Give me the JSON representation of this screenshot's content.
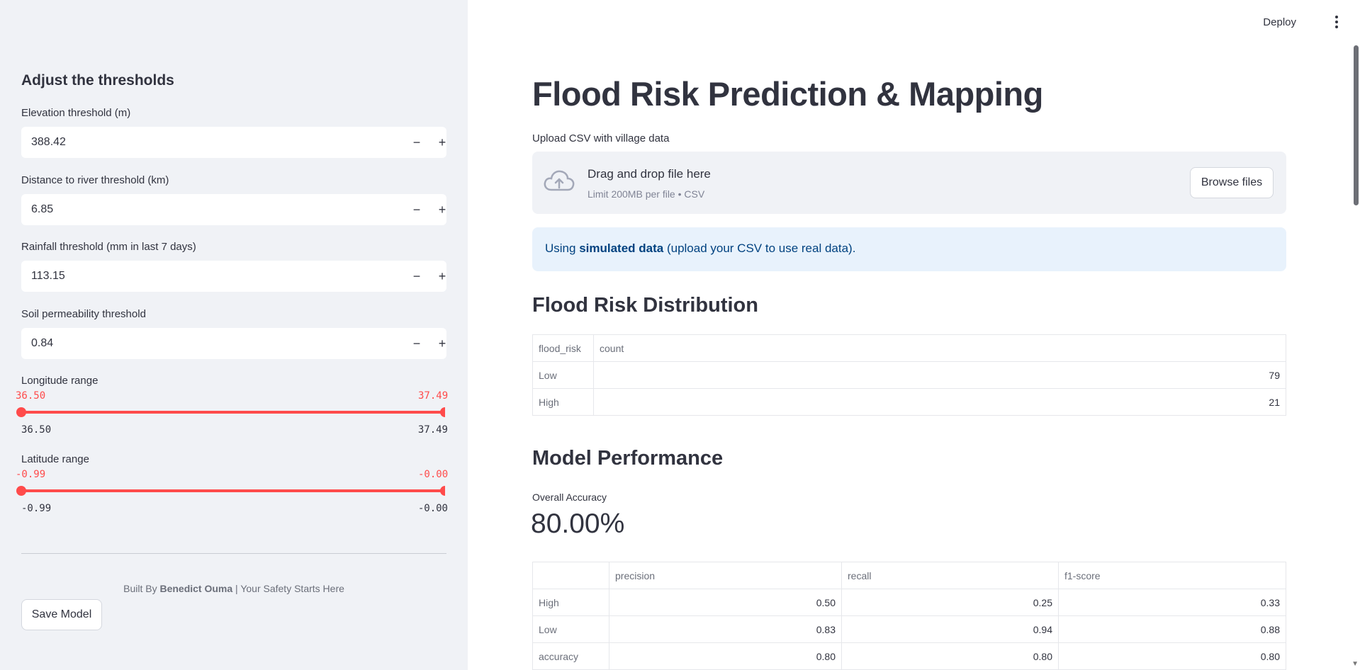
{
  "header": {
    "deploy_label": "Deploy",
    "menu_icon": "kebab-menu-icon"
  },
  "sidebar": {
    "title": "Adjust the thresholds",
    "inputs": [
      {
        "label": "Elevation threshold (m)",
        "value": "388.42"
      },
      {
        "label": "Distance to river threshold (km)",
        "value": "6.85"
      },
      {
        "label": "Rainfall threshold (mm in last 7 days)",
        "value": "113.15"
      },
      {
        "label": "Soil permeability threshold",
        "value": "0.84"
      }
    ],
    "step_minus": "−",
    "step_plus": "+",
    "sliders": [
      {
        "label": "Longitude range",
        "min_label": "36.50",
        "max_label_clipped": "37.49",
        "min": "36.50",
        "max": "37.49"
      },
      {
        "label": "Latitude range",
        "min_label": "-0.99",
        "max_label_clipped": "-0.00",
        "min": "-0.99",
        "max": "-0.00"
      }
    ],
    "footer": {
      "prefix": "Built By ",
      "author": "Benedict Ouma",
      "suffix": " | Your Safety Starts Here"
    },
    "save_button": "Save Model"
  },
  "main": {
    "title": "Flood Risk Prediction & Mapping",
    "upload": {
      "label": "Upload CSV with village data",
      "drop_title": "Drag and drop file here",
      "drop_sub": "Limit 200MB per file • CSV",
      "browse_button": "Browse files"
    },
    "info": {
      "prefix": "Using ",
      "bold": "simulated data",
      "suffix": " (upload your CSV to use real data)."
    },
    "distribution": {
      "heading": "Flood Risk Distribution",
      "columns": [
        "flood_risk",
        "count"
      ],
      "rows": [
        [
          "Low",
          "79"
        ],
        [
          "High",
          "21"
        ]
      ]
    },
    "performance": {
      "heading": "Model Performance",
      "metric_label": "Overall Accuracy",
      "metric_value": "80.00%",
      "columns": [
        "",
        "precision",
        "recall",
        "f1-score"
      ],
      "rows": [
        [
          "High",
          "0.50",
          "0.25",
          "0.33"
        ],
        [
          "Low",
          "0.83",
          "0.94",
          "0.88"
        ],
        [
          "accuracy",
          "0.80",
          "0.80",
          "0.80"
        ]
      ]
    }
  },
  "colors": {
    "accent": "#ff4b4b",
    "sidebar_bg": "#f0f2f6",
    "info_bg": "#e8f2fc",
    "info_text": "#004280"
  }
}
